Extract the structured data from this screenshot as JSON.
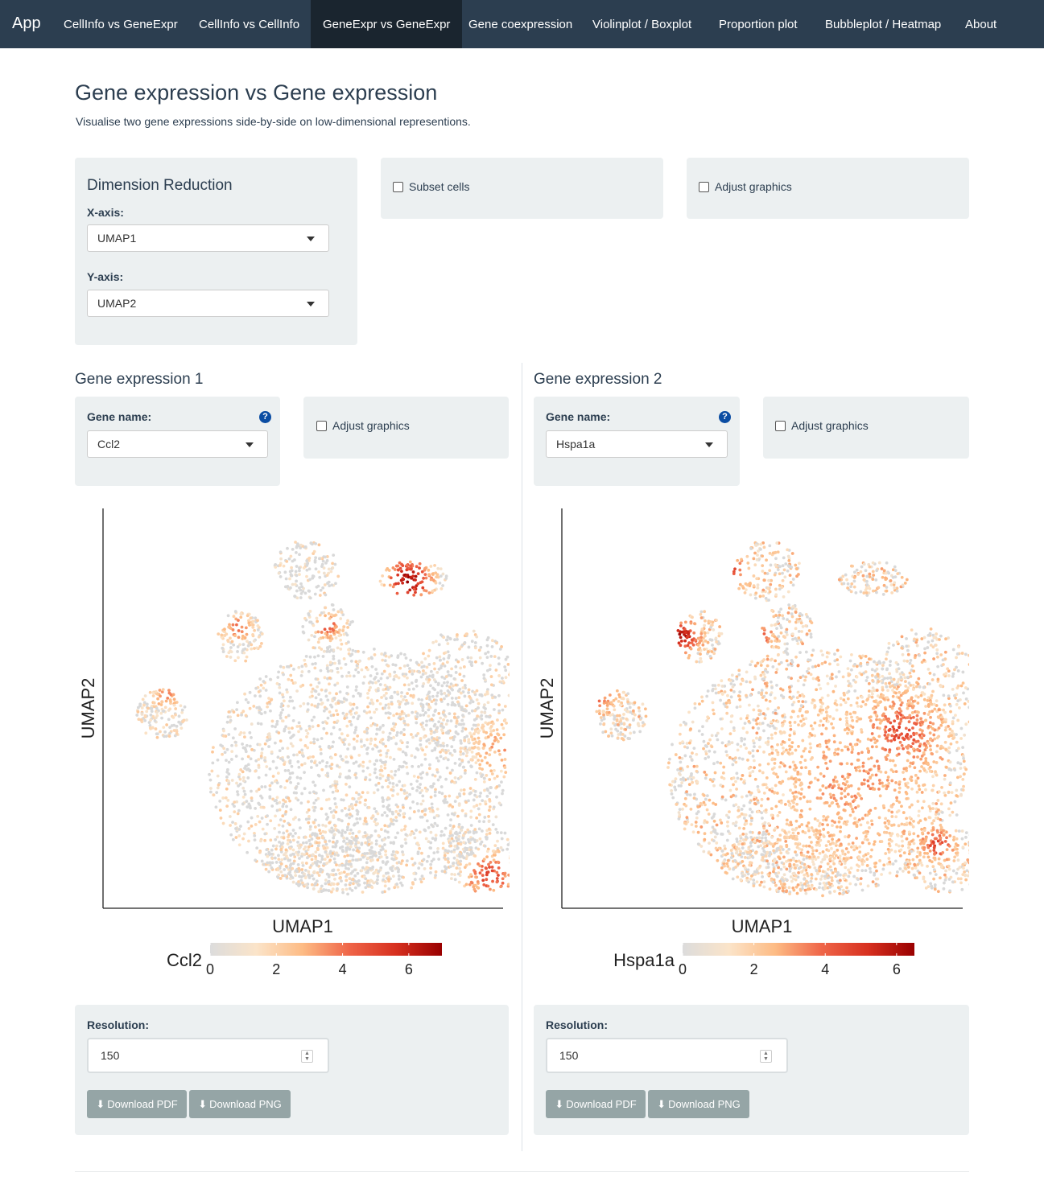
{
  "nav": {
    "brand": "App",
    "items": [
      {
        "label": "CellInfo vs GeneExpr",
        "active": false
      },
      {
        "label": "CellInfo vs CellInfo",
        "active": false
      },
      {
        "label": "GeneExpr vs GeneExpr",
        "active": true
      },
      {
        "label": "Gene coexpression",
        "active": false
      },
      {
        "label": "Violinplot / Boxplot",
        "active": false
      },
      {
        "label": "Proportion plot",
        "active": false
      },
      {
        "label": "Bubbleplot / Heatmap",
        "active": false
      },
      {
        "label": "About",
        "active": false
      }
    ]
  },
  "page": {
    "title": "Gene expression vs Gene expression",
    "subtitle": "Visualise two gene expressions side-by-side on low-dimensional representions."
  },
  "dimred": {
    "heading": "Dimension Reduction",
    "x_label": "X-axis:",
    "x_value": "UMAP1",
    "y_label": "Y-axis:",
    "y_value": "UMAP2"
  },
  "subset": {
    "label": "Subset cells",
    "checked": false
  },
  "adjust_top": {
    "label": "Adjust graphics",
    "checked": false
  },
  "panels": [
    {
      "title": "Gene expression 1",
      "gene_label": "Gene name:",
      "gene_value": "Ccl2",
      "help_icon": "question-circle-icon",
      "adjust_label": "Adjust graphics",
      "resolution_label": "Resolution:",
      "resolution_value": "150",
      "download_pdf": "Download PDF",
      "download_png": "Download PNG",
      "download_icon": "download-icon"
    },
    {
      "title": "Gene expression 2",
      "gene_label": "Gene name:",
      "gene_value": "Hspa1a",
      "help_icon": "question-circle-icon",
      "adjust_label": "Adjust graphics",
      "resolution_label": "Resolution:",
      "resolution_value": "150",
      "download_pdf": "Download PDF",
      "download_png": "Download PNG",
      "download_icon": "download-icon"
    }
  ],
  "chart_data": [
    {
      "type": "scatter",
      "xlabel": "UMAP1",
      "ylabel": "UMAP2",
      "grid": false,
      "legend_title": "Ccl2",
      "legend_ticks": [
        0,
        2,
        4,
        6
      ],
      "legend_range": [
        0,
        7
      ],
      "legend_placement": "bottom",
      "colors": [
        "#dcdcdc",
        "#fbe4c9",
        "#fdbb84",
        "#ef6548",
        "#d7301f",
        "#990000"
      ],
      "hotspots_description_free": true
    },
    {
      "type": "scatter",
      "xlabel": "UMAP1",
      "ylabel": "UMAP2",
      "grid": false,
      "legend_title": "Hspa1a",
      "legend_ticks": [
        0,
        2,
        4,
        6
      ],
      "legend_range": [
        0,
        6.5
      ],
      "legend_placement": "bottom",
      "colors": [
        "#dcdcdc",
        "#fbe4c9",
        "#fdbb84",
        "#ef6548",
        "#d7301f",
        "#990000"
      ],
      "hotspots_description_free": true
    }
  ]
}
